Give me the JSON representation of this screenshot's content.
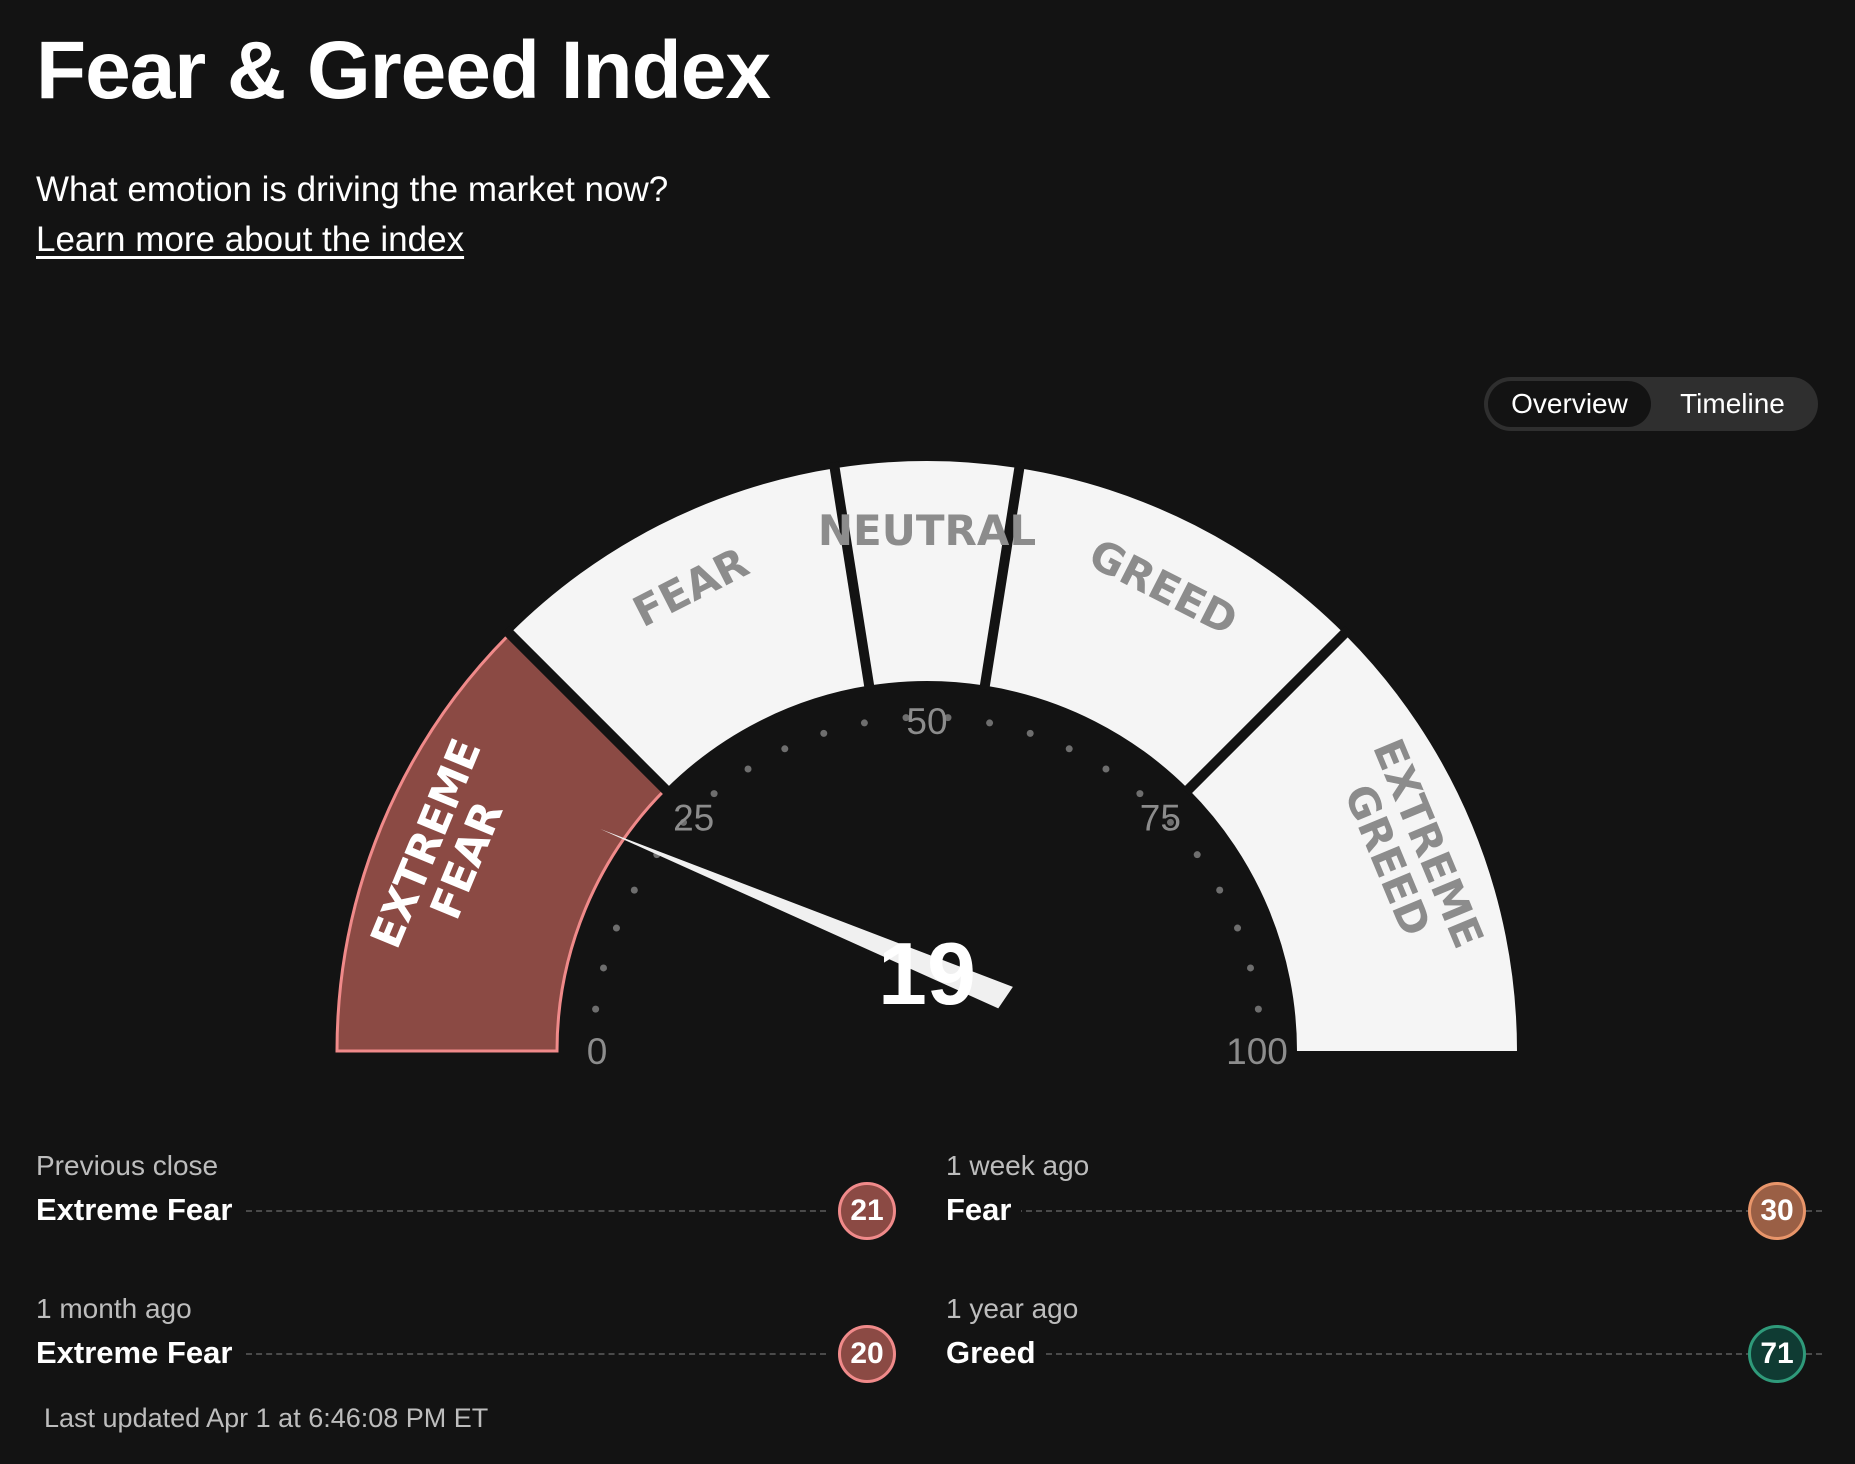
{
  "header": {
    "title": "Fear & Greed Index",
    "subtitle": "What emotion is driving the market now?",
    "learn_more": "Learn more about the index"
  },
  "view_toggle": {
    "options": [
      "Overview",
      "Timeline"
    ],
    "selected": "Overview"
  },
  "gauge": {
    "value": 19,
    "value_label": "19",
    "min": 0,
    "max": 100,
    "tick_labels": [
      "0",
      "25",
      "50",
      "75",
      "100"
    ],
    "segments": [
      {
        "name": "EXTREME FEAR",
        "lines": [
          "EXTREME",
          "FEAR"
        ],
        "from": 0,
        "to": 25,
        "active": true
      },
      {
        "name": "FEAR",
        "lines": [
          "FEAR"
        ],
        "from": 25,
        "to": 45,
        "active": false
      },
      {
        "name": "NEUTRAL",
        "lines": [
          "NEUTRAL"
        ],
        "from": 45,
        "to": 55,
        "active": false
      },
      {
        "name": "GREED",
        "lines": [
          "GREED"
        ],
        "from": 55,
        "to": 75,
        "active": false
      },
      {
        "name": "EXTREME GREED",
        "lines": [
          "EXTREME",
          "GREED"
        ],
        "from": 75,
        "to": 100,
        "active": false
      }
    ],
    "colors": {
      "active_fill": "#8b4a44",
      "active_stroke": "#f08a8a",
      "inactive_fill": "#f5f5f5",
      "inactive_text": "#8c8c8c",
      "needle": "#f0f0f0"
    }
  },
  "history": [
    {
      "period": "Previous close",
      "rating": "Extreme Fear",
      "value": "21",
      "color": "#8b4a44",
      "border": "#f08a8a"
    },
    {
      "period": "1 week ago",
      "rating": "Fear",
      "value": "30",
      "color": "#9a5f45",
      "border": "#e8956a"
    },
    {
      "period": "1 month ago",
      "rating": "Extreme Fear",
      "value": "20",
      "color": "#8b4a44",
      "border": "#f08a8a"
    },
    {
      "period": "1 year ago",
      "rating": "Greed",
      "value": "71",
      "color": "#0f3b33",
      "border": "#2f9a7a"
    }
  ],
  "last_updated": "Last updated Apr 1 at 6:46:08 PM ET"
}
